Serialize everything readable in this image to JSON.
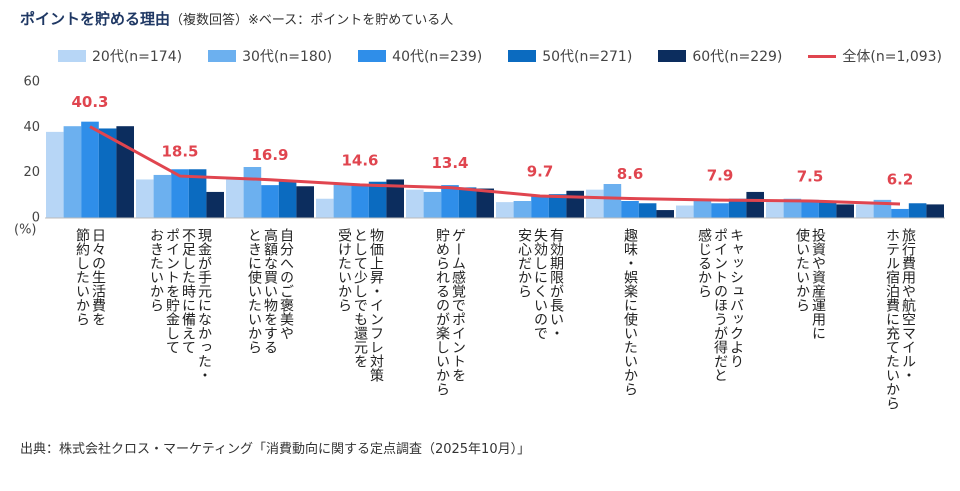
{
  "chart_data": {
    "type": "bar",
    "title": "ポイントを貯める理由",
    "subtitle": "（複数回答）※ベース：ポイントを貯めている人",
    "y_label": "(%)",
    "source": "出典：株式会社クロス・マーケティング「消費動向に関する定点調査（2025年10月）」",
    "categories": [
      "日々の生活費を\n節約したいから",
      "現金が手元になかった・\n不足した時に備えて\nポイントを貯金して\nおきたいから",
      "自分へのご褒美や\n高額な買い物をする\nときに使いたいから",
      "物価上昇・インフレ対策\nとして少しでも還元を\n受けたいから",
      "ゲーム感覚でポイントを\n貯められるのが楽しいから",
      "有効期限が長い・\n失効しにくいので\n安心だから",
      "趣味・娯楽に使いたいから",
      "キャッシュバックより\nポイントのほうが得だと\n感じるから",
      "投資や資産運用に\n使いたいから",
      "旅行費用や航空マイル・\nホテル宿泊費に充てたいから"
    ],
    "series": [
      {
        "name": "20代(n=174)",
        "color": "#b7d6f6",
        "values": [
          38,
          17,
          17,
          8.5,
          12.5,
          7,
          12.5,
          5.5,
          7,
          6
        ]
      },
      {
        "name": "30代(n=180)",
        "color": "#6cb0ef",
        "values": [
          40.5,
          19,
          22.5,
          15,
          11.5,
          7.5,
          15,
          8,
          8.5,
          8
        ]
      },
      {
        "name": "40代(n=239)",
        "color": "#2f8ee9",
        "values": [
          42.5,
          21.5,
          14.5,
          14.5,
          14.5,
          9.5,
          7.5,
          6.5,
          8,
          4
        ]
      },
      {
        "name": "50代(n=271)",
        "color": "#0b6bc0",
        "values": [
          39.5,
          21.5,
          16.5,
          16,
          13.5,
          10.5,
          6.5,
          8.5,
          7.5,
          6.5
        ]
      },
      {
        "name": "60代(n=229)",
        "color": "#0c2d5e",
        "values": [
          40.5,
          11.5,
          14,
          17,
          13,
          12,
          3.5,
          11.5,
          6,
          6
        ]
      },
      {
        "name": "全体(n=1,093)",
        "color": "#e0454f",
        "type": "line",
        "values": [
          40.3,
          18.5,
          16.9,
          14.6,
          13.4,
          9.7,
          8.6,
          7.9,
          7.5,
          6.2
        ]
      }
    ],
    "ylim": [
      0,
      60
    ],
    "yticks": [
      0,
      20,
      40,
      60
    ],
    "grid": false,
    "legend": "top"
  }
}
